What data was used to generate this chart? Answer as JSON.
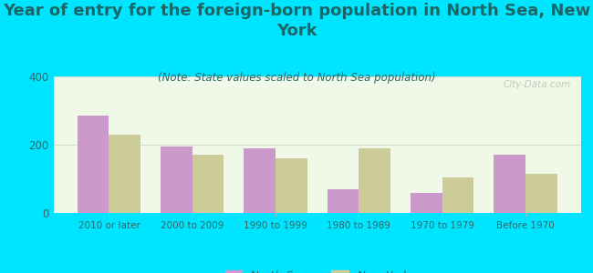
{
  "title": "Year of entry for the foreign-born population in North Sea, New\nYork",
  "subtitle": "(Note: State values scaled to North Sea population)",
  "categories": [
    "2010 or later",
    "2000 to 2009",
    "1990 to 1999",
    "1980 to 1989",
    "1970 to 1979",
    "Before 1970"
  ],
  "north_sea": [
    285,
    195,
    190,
    70,
    60,
    170
  ],
  "new_york": [
    230,
    170,
    160,
    190,
    105,
    115
  ],
  "north_sea_color": "#cc99cc",
  "new_york_color": "#cccc99",
  "background_color": "#00e5ff",
  "ylim": [
    0,
    400
  ],
  "yticks": [
    0,
    200,
    400
  ],
  "bar_width": 0.38,
  "title_fontsize": 13,
  "subtitle_fontsize": 8.5,
  "watermark": "City-Data.com",
  "legend_north_sea": "North Sea",
  "legend_new_york": "New York"
}
